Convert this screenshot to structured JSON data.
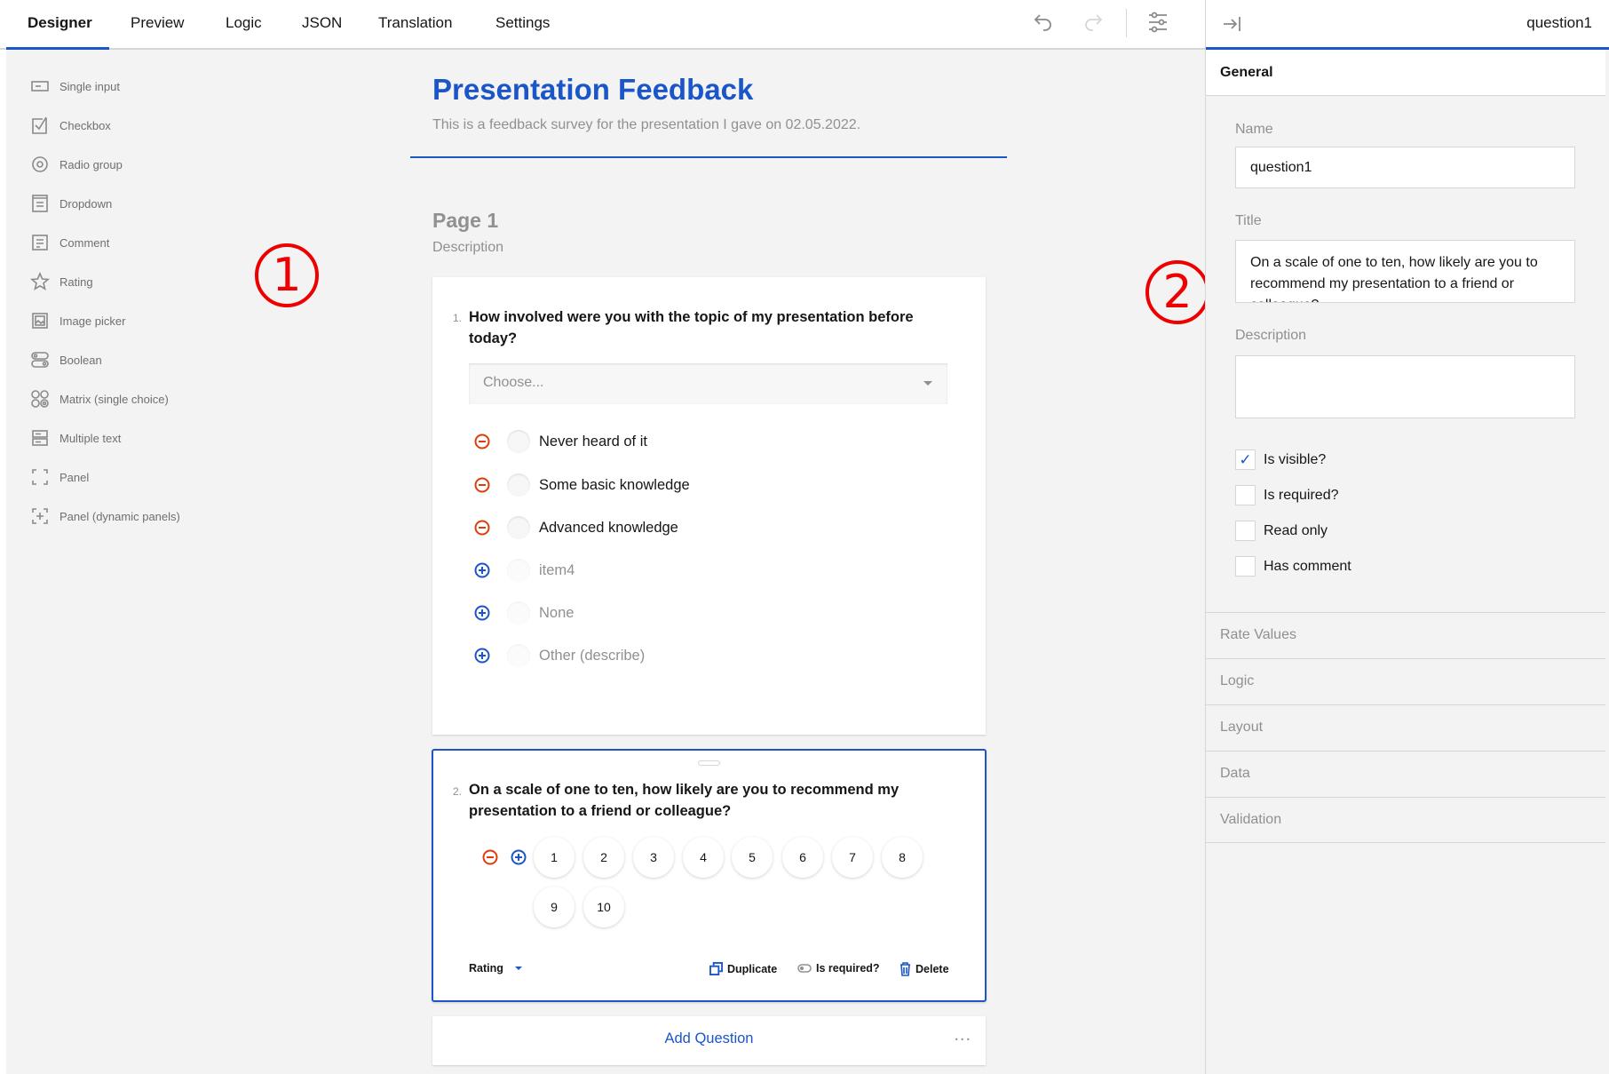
{
  "tabs": [
    "Designer",
    "Preview",
    "Logic",
    "JSON",
    "Translation",
    "Settings"
  ],
  "toolbar_icons": [
    "undo-icon",
    "redo-icon",
    "settings-icon"
  ],
  "toolbox": [
    {
      "label": "Single input",
      "icon": "single-input-icon"
    },
    {
      "label": "Checkbox",
      "icon": "checkbox-icon"
    },
    {
      "label": "Radio group",
      "icon": "radio-group-icon"
    },
    {
      "label": "Dropdown",
      "icon": "dropdown-icon"
    },
    {
      "label": "Comment",
      "icon": "comment-icon"
    },
    {
      "label": "Rating",
      "icon": "star-icon"
    },
    {
      "label": "Image picker",
      "icon": "image-icon"
    },
    {
      "label": "Boolean",
      "icon": "boolean-icon"
    },
    {
      "label": "Matrix (single choice)",
      "icon": "matrix-icon"
    },
    {
      "label": "Multiple text",
      "icon": "multiple-text-icon"
    },
    {
      "label": "Panel",
      "icon": "panel-icon"
    },
    {
      "label": "Panel (dynamic panels)",
      "icon": "dynamic-panel-icon"
    }
  ],
  "survey": {
    "title": "Presentation Feedback",
    "description": "This is a feedback survey for the presentation I gave on 02.05.2022.",
    "page": {
      "title": "Page 1",
      "description": "Description"
    },
    "q1": {
      "num": "1.",
      "title": "How involved were you with the topic of my presentation before today?",
      "placeholder": "Choose...",
      "choices": [
        "Never heard of it",
        "Some basic knowledge",
        "Advanced knowledge"
      ],
      "extra": [
        "item4",
        "None",
        "Other (describe)"
      ]
    },
    "q2": {
      "num": "2.",
      "title": "On a scale of one to ten, how likely are you to recommend my presentation to a friend or colleague?",
      "rates": [
        "1",
        "2",
        "3",
        "4",
        "5",
        "6",
        "7",
        "8",
        "9",
        "10"
      ],
      "type": "Rating",
      "duplicate": "Duplicate",
      "required": "Is required?",
      "delete": "Delete"
    },
    "add_question": "Add Question",
    "more": "..."
  },
  "markers": [
    "1",
    "2"
  ],
  "panel": {
    "header": "question1",
    "general": "General",
    "name_label": "Name",
    "name_value": "question1",
    "title_label": "Title",
    "title_value": "On a scale of one to ten, how likely are you to recommend my presentation to a friend or colleague?",
    "description_label": "Description",
    "description_value": "",
    "checks": [
      {
        "label": "Is visible?",
        "checked": true
      },
      {
        "label": "Is required?",
        "checked": false
      },
      {
        "label": "Read only",
        "checked": false
      },
      {
        "label": "Has comment",
        "checked": false
      }
    ],
    "sections": [
      "Rate Values",
      "Logic",
      "Layout",
      "Data",
      "Validation"
    ]
  },
  "colors": {
    "accent": "#1a56c8",
    "remove": "#e03c0c",
    "marker": "#ee0000"
  }
}
